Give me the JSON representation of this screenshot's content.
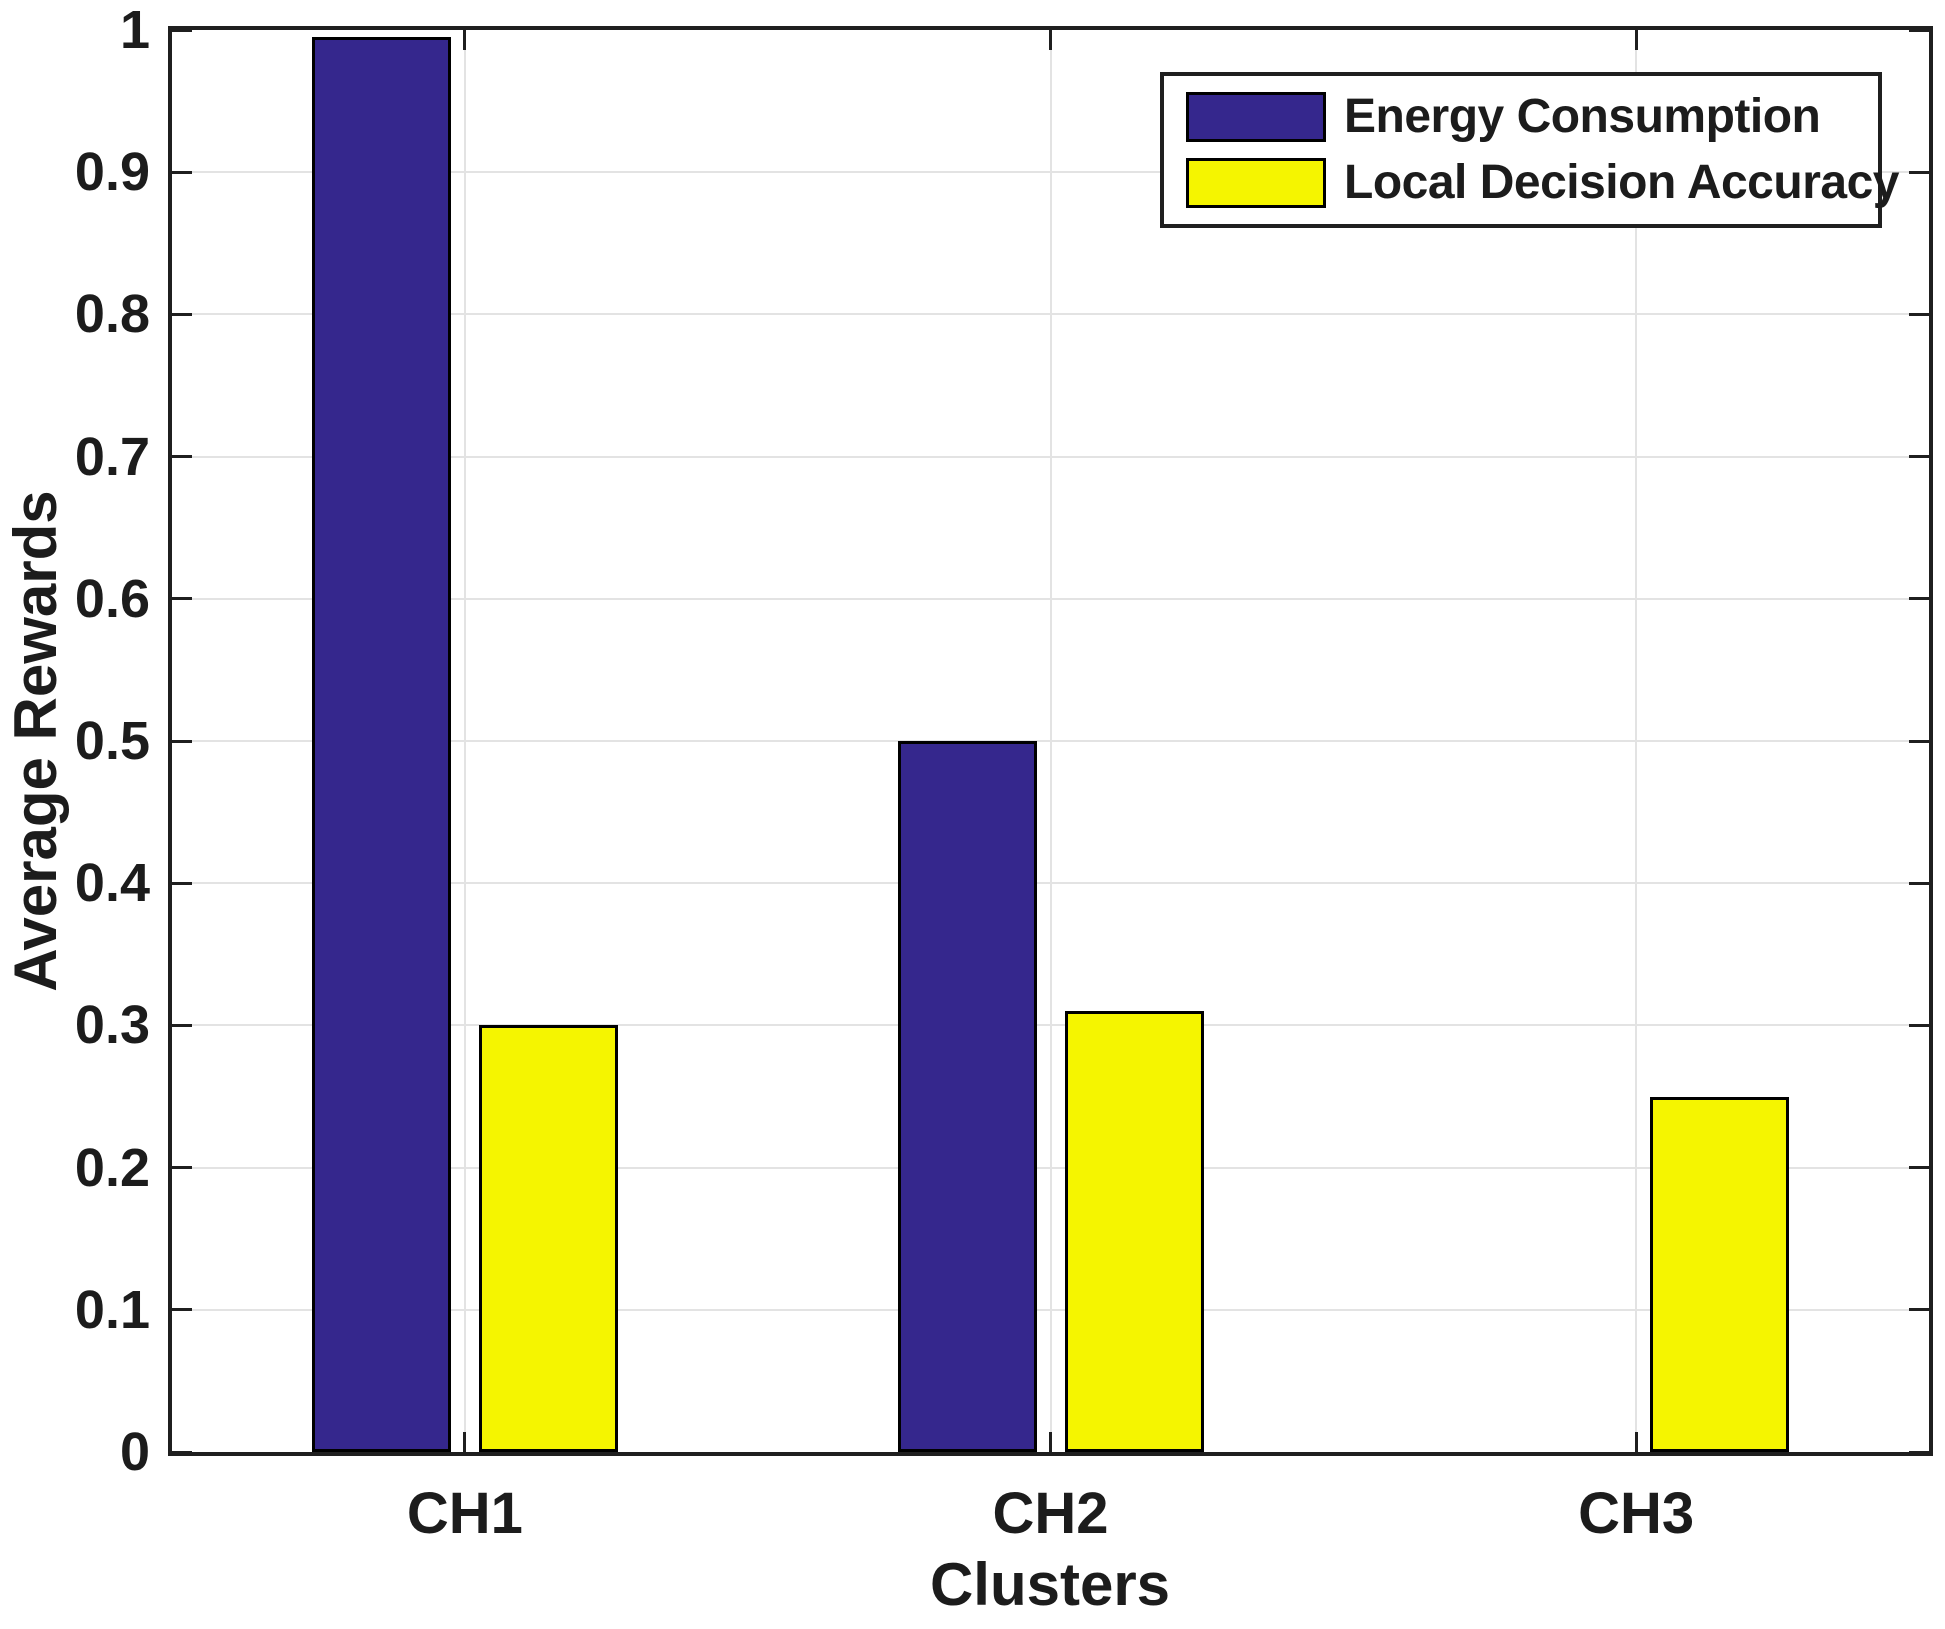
{
  "chart_data": {
    "type": "bar",
    "title": "",
    "xlabel": "Clusters",
    "ylabel": "Average Rewards",
    "categories": [
      "CH1",
      "CH2",
      "CH3"
    ],
    "series": [
      {
        "name": "Energy Consumption",
        "color": "#35278D",
        "values": [
          0.995,
          0.5,
          0
        ]
      },
      {
        "name": "Local Decision Accuracy",
        "color": "#F5F500",
        "values": [
          0.3,
          0.31,
          0.25
        ]
      }
    ],
    "ylim": [
      0,
      1
    ],
    "yticks": [
      0,
      0.1,
      0.2,
      0.3,
      0.4,
      0.5,
      0.6,
      0.7,
      0.8,
      0.9,
      1
    ],
    "ytick_labels": [
      "0",
      "0.1",
      "0.2",
      "0.3",
      "0.4",
      "0.5",
      "0.6",
      "0.7",
      "0.8",
      "0.9",
      "1"
    ],
    "grid": true,
    "legend_position": "top-right",
    "axis_color": "#1f1f1f",
    "grid_color": "#e3e3e3",
    "bar_edge_color": "#000000",
    "background_color": "#ffffff"
  }
}
